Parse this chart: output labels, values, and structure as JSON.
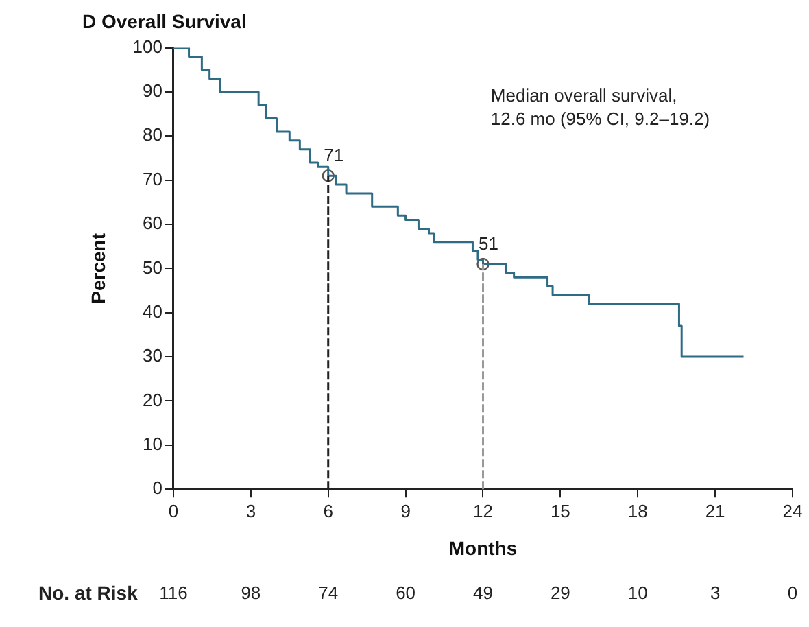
{
  "chart_data": {
    "type": "step",
    "title": "D Overall Survival",
    "xlabel": "Months",
    "ylabel": "Percent",
    "xlim": [
      0,
      24
    ],
    "xticks": [
      0,
      3,
      6,
      9,
      12,
      15,
      18,
      21,
      24
    ],
    "ylim": [
      0,
      100
    ],
    "yticks": [
      0,
      10,
      20,
      30,
      40,
      50,
      60,
      70,
      80,
      90,
      100
    ],
    "grid": false,
    "legend": false,
    "series": [
      {
        "color": "#2e6b84",
        "x": [
          0,
          0.6,
          1.1,
          1.4,
          1.8,
          3.3,
          3.6,
          4.0,
          4.5,
          4.9,
          5.3,
          5.6,
          6.0,
          6.3,
          6.7,
          7.7,
          8.7,
          9.0,
          9.5,
          9.9,
          10.1,
          11.6,
          11.8,
          12.0,
          12.9,
          13.2,
          14.5,
          14.7,
          16.1,
          19.6,
          19.7,
          22.1
        ],
        "values": [
          100,
          98,
          95,
          93,
          90,
          87,
          84,
          81,
          79,
          77,
          74,
          73,
          71,
          69,
          67,
          64,
          62,
          61,
          59,
          58,
          56,
          54,
          52,
          51,
          49,
          48,
          46,
          44,
          42,
          37,
          30,
          30
        ]
      },
      {
        "type": "scatter",
        "color": "#555555",
        "marker": "circle",
        "x": [
          6,
          12
        ],
        "values": [
          71,
          51
        ]
      }
    ],
    "ref_lines": [
      {
        "axis": "x",
        "value": 6,
        "color": "#222222",
        "line_style": "dashed"
      },
      {
        "axis": "x",
        "value": 12,
        "color": "#999999",
        "line_style": "dashed"
      }
    ],
    "annotations": [
      "Median overall survival, 12.6 mo (95% CI, 9.2–19.2)",
      "No. at Risk",
      {
        "text": "71",
        "x": 6,
        "y": 71
      },
      {
        "text": "51",
        "x": 12,
        "y": 51
      },
      "116",
      "98",
      "74",
      "60",
      "49",
      "29",
      "10",
      "3",
      "0"
    ]
  }
}
